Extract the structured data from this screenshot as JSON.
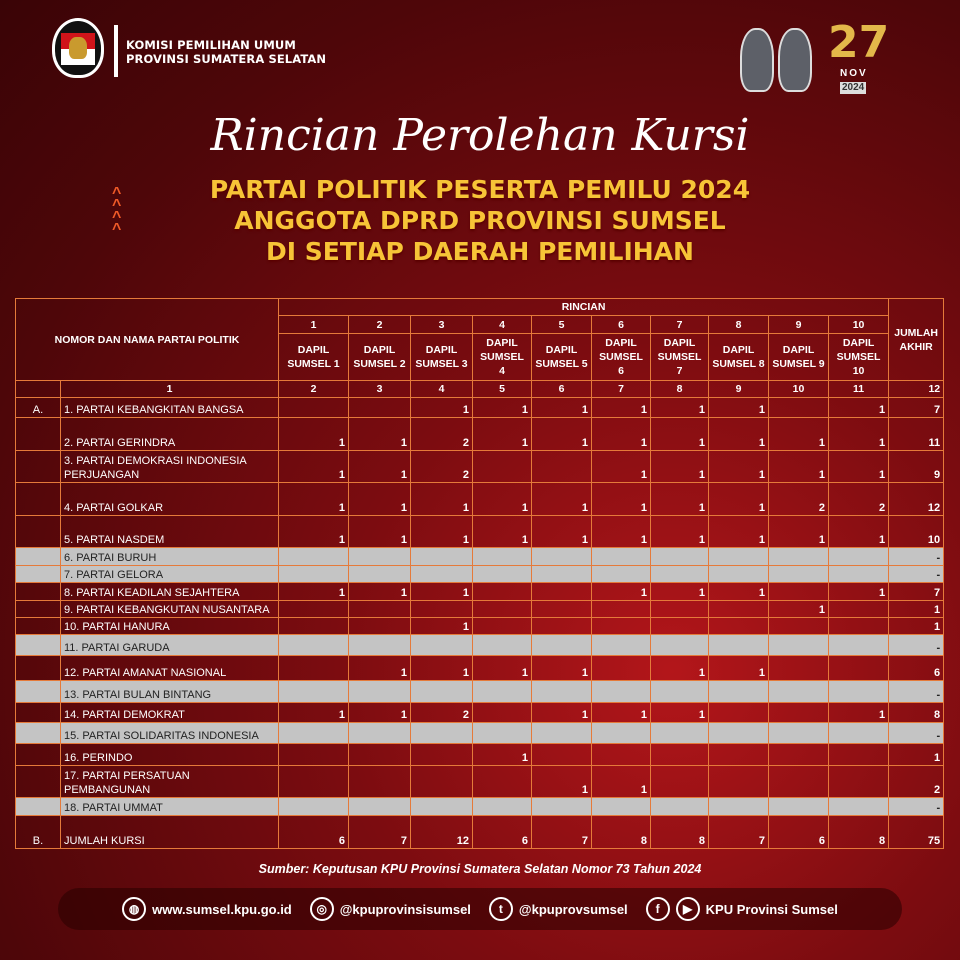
{
  "header": {
    "org_line1": "KOMISI PEMILIHAN UMUM",
    "org_line2": "PROVINSI SUMATERA SELATAN",
    "logo_text": "KOMISI PEMILIHAN UMUM",
    "date_day": "27",
    "date_month": "NOV",
    "date_year": "2024"
  },
  "title": {
    "script": "Rincian Perolehan Kursi",
    "line1": "PARTAI POLITIK PESERTA PEMILU 2024",
    "line2": "ANGGOTA DPRD PROVINSI SUMSEL",
    "line3": "DI SETIAP DAERAH PEMILIHAN"
  },
  "table": {
    "col_party": "NOMOR DAN NAMA PARTAI POLITIK",
    "rincian": "RINCIAN",
    "total_header": "JUMLAH AKHIR",
    "dapil_numbers": [
      "1",
      "2",
      "3",
      "4",
      "5",
      "6",
      "7",
      "8",
      "9",
      "10"
    ],
    "dapil_labels": [
      "DAPIL SUMSEL 1",
      "DAPIL SUMSEL 2",
      "DAPIL SUMSEL 3",
      "DAPIL SUMSEL 4",
      "DAPIL SUMSEL 5",
      "DAPIL SUMSEL 6",
      "DAPIL SUMSEL 7",
      "DAPIL SUMSEL 8",
      "DAPIL SUMSEL 9",
      "DAPIL SUMSEL 10"
    ],
    "column_index": [
      "1",
      "2",
      "3",
      "4",
      "5",
      "6",
      "7",
      "8",
      "9",
      "10",
      "11",
      "12"
    ],
    "rows": [
      {
        "no": "A.",
        "name": "1. PARTAI KEBANGKITAN  BANGSA",
        "values": [
          "",
          "",
          "1",
          "1",
          "1",
          "1",
          "1",
          "1",
          "",
          "1"
        ],
        "total": "7",
        "gray": false
      },
      {
        "no": "",
        "name": "2. PARTAI GERINDRA",
        "values": [
          "1",
          "1",
          "2",
          "1",
          "1",
          "1",
          "1",
          "1",
          "1",
          "1"
        ],
        "total": "11",
        "gray": false
      },
      {
        "no": "",
        "name": "3. PARTAI DEMOKRASI INDONESIA PERJUANGAN",
        "values": [
          "1",
          "1",
          "2",
          "",
          "",
          "1",
          "1",
          "1",
          "1",
          "1"
        ],
        "total": "9",
        "gray": false
      },
      {
        "no": "",
        "name": "4. PARTAI GOLKAR",
        "values": [
          "1",
          "1",
          "1",
          "1",
          "1",
          "1",
          "1",
          "1",
          "2",
          "2"
        ],
        "total": "12",
        "gray": false
      },
      {
        "no": "",
        "name": "5. PARTAI NASDEM",
        "values": [
          "1",
          "1",
          "1",
          "1",
          "1",
          "1",
          "1",
          "1",
          "1",
          "1"
        ],
        "total": "10",
        "gray": false
      },
      {
        "no": "",
        "name": "6. PARTAI BURUH",
        "values": [
          "",
          "",
          "",
          "",
          "",
          "",
          "",
          "",
          "",
          ""
        ],
        "total": "-",
        "gray": true
      },
      {
        "no": "",
        "name": "7. PARTAI GELORA",
        "values": [
          "",
          "",
          "",
          "",
          "",
          "",
          "",
          "",
          "",
          ""
        ],
        "total": "-",
        "gray": true
      },
      {
        "no": "",
        "name": "8. PARTAI KEADILAN  SEJAHTERA",
        "values": [
          "1",
          "1",
          "1",
          "",
          "",
          "1",
          "1",
          "1",
          "",
          "1"
        ],
        "total": "7",
        "gray": false
      },
      {
        "no": "",
        "name": "9. PARTAI KEBANGKUTAN  NUSANTARA",
        "values": [
          "",
          "",
          "",
          "",
          "",
          "",
          "",
          "",
          "1",
          ""
        ],
        "total": "1",
        "gray": false
      },
      {
        "no": "",
        "name": "10. PARTAI HANURA",
        "values": [
          "",
          "",
          "1",
          "",
          "",
          "",
          "",
          "",
          "",
          ""
        ],
        "total": "1",
        "gray": false
      },
      {
        "no": "",
        "name": "11. PARTAI GARUDA",
        "values": [
          "",
          "",
          "",
          "",
          "",
          "",
          "",
          "",
          "",
          ""
        ],
        "total": "-",
        "gray": true
      },
      {
        "no": "",
        "name": "12. PARTAI AMANAT  NASIONAL",
        "values": [
          "",
          "1",
          "1",
          "1",
          "1",
          "",
          "1",
          "1",
          "",
          ""
        ],
        "total": "6",
        "gray": false
      },
      {
        "no": "",
        "name": "13. PARTAI BULAN  BINTANG",
        "values": [
          "",
          "",
          "",
          "",
          "",
          "",
          "",
          "",
          "",
          ""
        ],
        "total": "-",
        "gray": true
      },
      {
        "no": "",
        "name": "14. PARTAI DEMOKRAT",
        "values": [
          "1",
          "1",
          "2",
          "",
          "1",
          "1",
          "1",
          "",
          "",
          "1"
        ],
        "total": "8",
        "gray": false
      },
      {
        "no": "",
        "name": "15. PARTAI SOLIDARITAS  INDONESIA",
        "values": [
          "",
          "",
          "",
          "",
          "",
          "",
          "",
          "",
          "",
          ""
        ],
        "total": "-",
        "gray": true
      },
      {
        "no": "",
        "name": "16. PERINDO",
        "values": [
          "",
          "",
          "",
          "1",
          "",
          "",
          "",
          "",
          "",
          ""
        ],
        "total": "1",
        "gray": false
      },
      {
        "no": "",
        "name": "17. PARTAI PERSATUAN PEMBANGUNAN",
        "values": [
          "",
          "",
          "",
          "",
          "1",
          "1",
          "",
          "",
          "",
          ""
        ],
        "total": "2",
        "gray": false
      },
      {
        "no": "",
        "name": "18. PARTAI UMMAT",
        "values": [
          "",
          "",
          "",
          "",
          "",
          "",
          "",
          "",
          "",
          ""
        ],
        "total": "-",
        "gray": true
      }
    ],
    "sum_row": {
      "no": "B.",
      "name": "JUMLAH  KURSI",
      "values": [
        "6",
        "7",
        "12",
        "6",
        "7",
        "8",
        "8",
        "7",
        "6",
        "8"
      ],
      "total": "75"
    }
  },
  "source": "Sumber: Keputusan KPU Provinsi Sumatera Selatan Nomor 73 Tahun 2024",
  "footer": {
    "website": "www.sumsel.kpu.go.id",
    "instagram": "@kpuprovinsisumsel",
    "twitter": "@kpuprovsumsel",
    "facebook_youtube": "KPU Provinsi Sumsel"
  },
  "colors": {
    "background": "#7c0c10",
    "title_yellow": "#f7c437",
    "grid": "#e57a3a",
    "empty_row": "#c4c4c4"
  }
}
